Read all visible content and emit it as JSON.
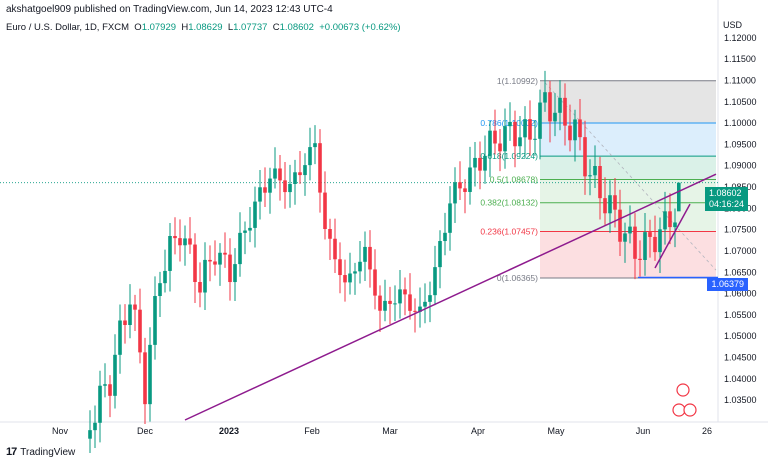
{
  "header": {
    "published": "akshatgoel909 published on TradingView.com, Jun 14, 2023 12:43 UTC-4"
  },
  "ohlc": {
    "symbol": "Euro / U.S. Dollar, 1D, FXCM",
    "o_label": "O",
    "o_value": "1.07929",
    "h_label": "H",
    "h_value": "1.08629",
    "l_label": "L",
    "l_value": "1.07737",
    "c_label": "C",
    "c_value": "1.08602",
    "change": "+0.00673 (+0.62%)"
  },
  "currency": "USD",
  "footer": {
    "brand": "TradingView"
  },
  "price_tag": {
    "price": "1.08602",
    "countdown": "04:16:24"
  },
  "low_tag": "1.06379",
  "chart_data": {
    "type": "candlestick",
    "y_ticks": [
      "1.12000",
      "1.11500",
      "1.11000",
      "1.10500",
      "1.10000",
      "1.09500",
      "1.09000",
      "1.08500",
      "1.08000",
      "1.07500",
      "1.07000",
      "1.06500",
      "1.06000",
      "1.05500",
      "1.05000",
      "1.04500",
      "1.04000",
      "1.03500"
    ],
    "x_ticks": [
      "Nov",
      "Dec",
      "2023",
      "Feb",
      "Mar",
      "Apr",
      "May",
      "Jun",
      "26"
    ],
    "ylim": [
      1.028,
      1.127
    ],
    "fib_levels": [
      {
        "ratio": "1",
        "value": "1.10992",
        "level": 1.10992,
        "color": "#787b86"
      },
      {
        "ratio": "0.786",
        "value": "1.10002",
        "level": 1.10002,
        "color": "#2196f3"
      },
      {
        "ratio": "0.618",
        "value": "1.09224",
        "level": 1.09224,
        "color": "#089981"
      },
      {
        "ratio": "0.5",
        "value": "1.08678",
        "level": 1.08678,
        "color": "#4caf50"
      },
      {
        "ratio": "0.382",
        "value": "1.08132",
        "level": 1.08132,
        "color": "#4caf50"
      },
      {
        "ratio": "0.236",
        "value": "1.07457",
        "level": 1.07457,
        "color": "#f23645"
      },
      {
        "ratio": "0",
        "value": "1.06365",
        "level": 1.06365,
        "color": "#787b86"
      }
    ],
    "last_close": 1.08602,
    "low_line": 1.06379
  }
}
